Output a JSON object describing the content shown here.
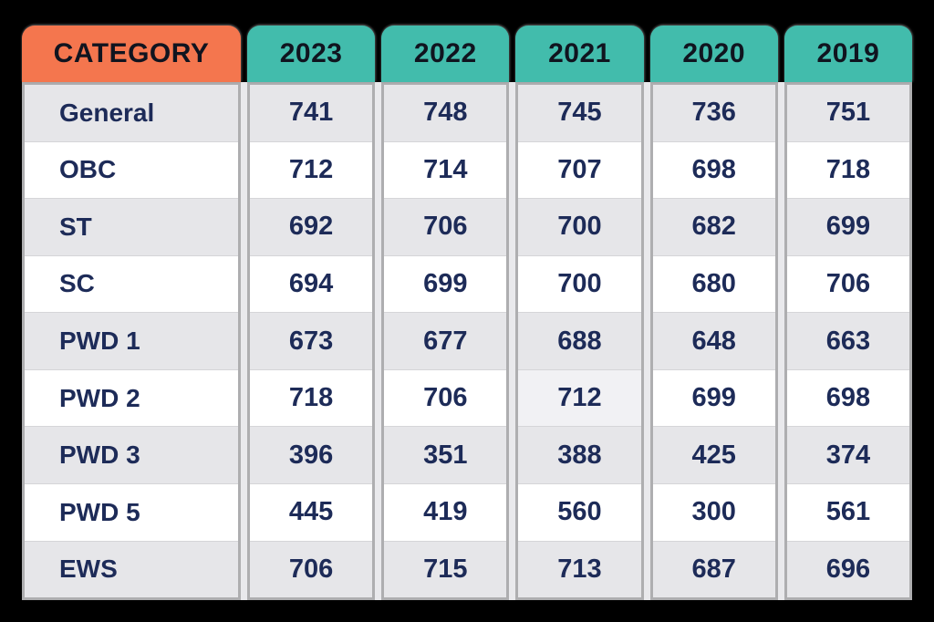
{
  "table": {
    "header": {
      "category_label": "CATEGORY",
      "years": [
        "2023",
        "2022",
        "2021",
        "2020",
        "2019"
      ]
    },
    "rows": [
      {
        "category": "General",
        "values": [
          "741",
          "748",
          "745",
          "736",
          "751"
        ]
      },
      {
        "category": "OBC",
        "values": [
          "712",
          "714",
          "707",
          "698",
          "718"
        ]
      },
      {
        "category": "ST",
        "values": [
          "692",
          "706",
          "700",
          "682",
          "699"
        ]
      },
      {
        "category": "SC",
        "values": [
          "694",
          "699",
          "700",
          "680",
          "706"
        ]
      },
      {
        "category": "PWD 1",
        "values": [
          "673",
          "677",
          "688",
          "648",
          "663"
        ]
      },
      {
        "category": "PWD 2",
        "values": [
          "718",
          "706",
          "712",
          "699",
          "698"
        ]
      },
      {
        "category": "PWD 3",
        "values": [
          "396",
          "351",
          "388",
          "425",
          "374"
        ]
      },
      {
        "category": "PWD 5",
        "values": [
          "445",
          "419",
          "560",
          "300",
          "561"
        ]
      },
      {
        "category": "EWS",
        "values": [
          "706",
          "715",
          "713",
          "687",
          "696"
        ]
      }
    ],
    "highlight_cell": {
      "row_index": 5,
      "year_index": 2
    },
    "colors": {
      "page_bg": "#000000",
      "category_header_bg": "#F4764E",
      "year_header_bg": "#42BCAC",
      "header_text": "#10141F",
      "body_text": "#1D2B58",
      "row_bg": "#FFFFFF",
      "row_alt_bg": "#E6E6E9",
      "highlight_cell_bg": "#F1F1F4",
      "border": "#AEAEB0",
      "row_separator": "#D5D5D8"
    }
  },
  "chart_data": {
    "type": "table",
    "title": "",
    "columns": [
      "CATEGORY",
      "2023",
      "2022",
      "2021",
      "2020",
      "2019"
    ],
    "categories": [
      "General",
      "OBC",
      "ST",
      "SC",
      "PWD 1",
      "PWD 2",
      "PWD 3",
      "PWD 5",
      "EWS"
    ],
    "series": [
      {
        "name": "2023",
        "values": [
          741,
          712,
          692,
          694,
          673,
          718,
          396,
          445,
          706
        ]
      },
      {
        "name": "2022",
        "values": [
          748,
          714,
          706,
          699,
          677,
          706,
          351,
          419,
          715
        ]
      },
      {
        "name": "2021",
        "values": [
          745,
          707,
          700,
          700,
          688,
          712,
          388,
          560,
          713
        ]
      },
      {
        "name": "2020",
        "values": [
          736,
          698,
          682,
          680,
          648,
          699,
          425,
          300,
          687
        ]
      },
      {
        "name": "2019",
        "values": [
          751,
          718,
          699,
          706,
          663,
          698,
          374,
          561,
          696
        ]
      }
    ],
    "layout_hints": {
      "row_header_color": "orange",
      "year_header_color": "teal",
      "alternating_rows": true,
      "first_data_row_shaded": true
    }
  }
}
